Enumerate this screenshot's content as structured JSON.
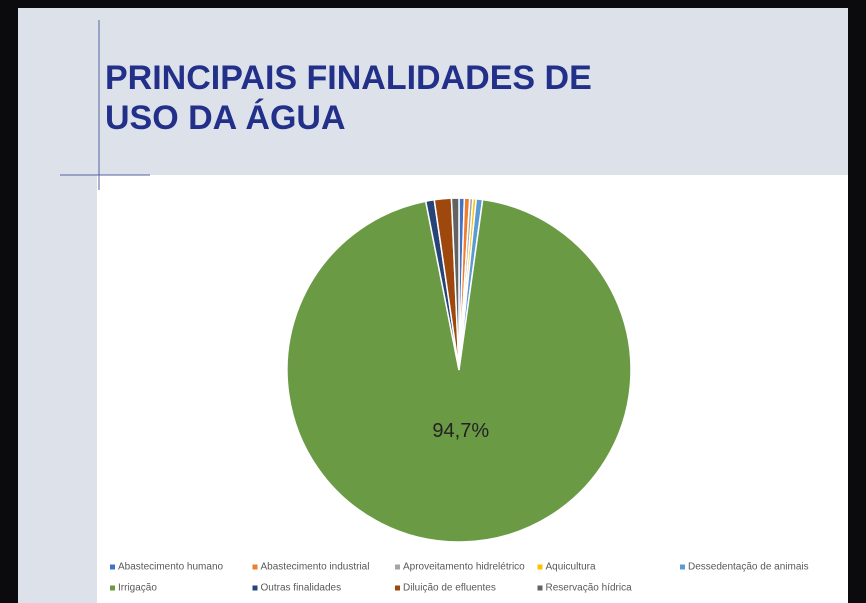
{
  "chart_data": {
    "type": "pie",
    "title": "PRINCIPAIS FINALIDADES DE USO DA ÁGUA",
    "categories": [
      "Abastecimento humano",
      "Abastecimento industrial",
      "Aproveitamento hidrelétrico",
      "Aquicultura",
      "Dessedentação de animais",
      "Irrigação",
      "Outras finalidades",
      "Diluição de efluentes",
      "Reservação hídrica"
    ],
    "values": [
      0.5,
      0.5,
      0.3,
      0.3,
      0.6,
      94.7,
      0.8,
      1.6,
      0.7
    ],
    "value_labels": [
      null,
      null,
      null,
      null,
      null,
      "94,7%",
      null,
      null,
      null
    ],
    "colors": [
      "#4472c4",
      "#ed7d31",
      "#a5a5a5",
      "#ffc000",
      "#5b9bd5",
      "#6b9a45",
      "#264478",
      "#9e480e",
      "#636363"
    ]
  }
}
